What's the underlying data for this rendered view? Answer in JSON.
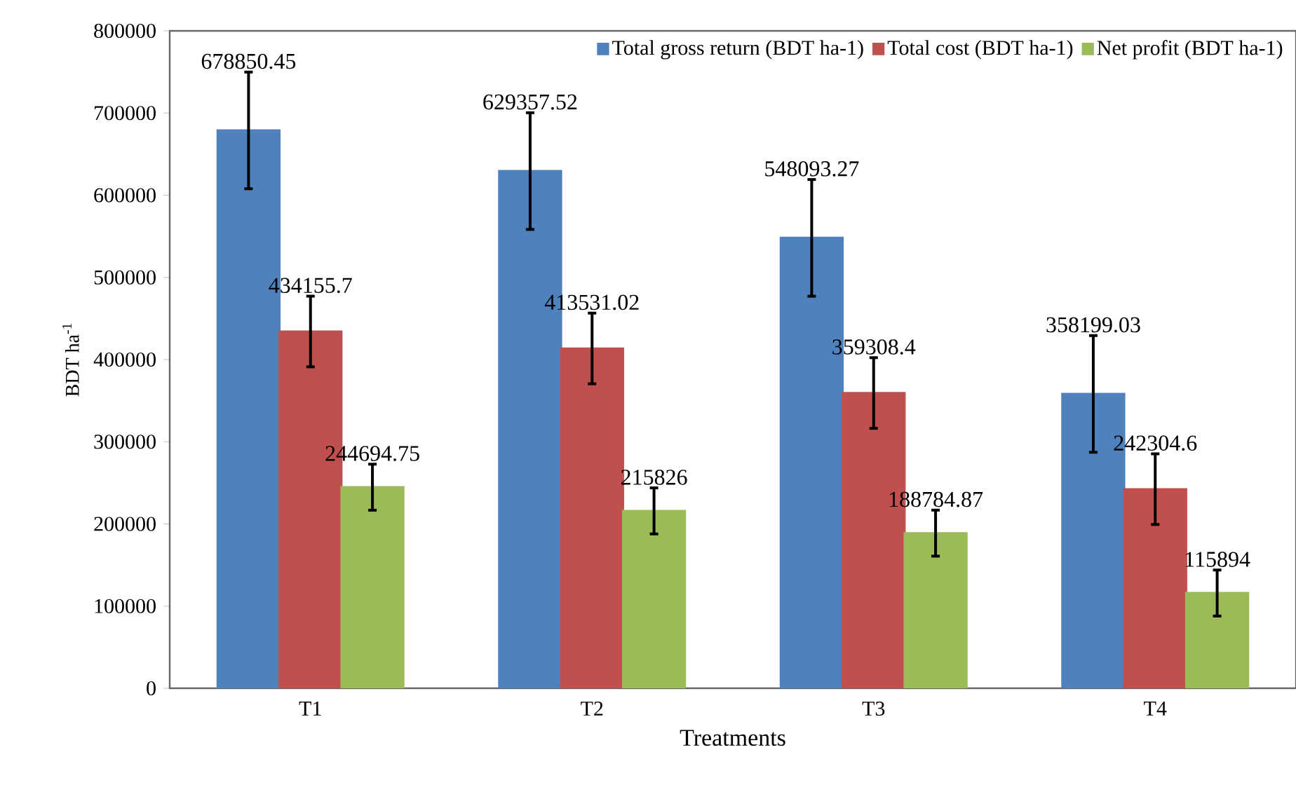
{
  "chart_data": {
    "type": "bar",
    "xlabel": "Treatments",
    "ylabel": "BDT ha$^{-1}$",
    "categories": [
      "T1",
      "T2",
      "T3",
      "T4"
    ],
    "series": [
      {
        "name": "Total gross return (BDT ha-1)",
        "color": "#4f81bd",
        "values": [
          678850.45,
          629357.52,
          548093.27,
          358199.03
        ],
        "errors": [
          71000,
          71000,
          71000,
          71000
        ],
        "value_labels": [
          "678850.45",
          "629357.52",
          "548093.27",
          "358199.03"
        ]
      },
      {
        "name": "Total cost (BDT ha-1)",
        "color": "#c0504d",
        "values": [
          434155.7,
          413531.02,
          359308.4,
          242304.6
        ],
        "errors": [
          43000,
          43000,
          43000,
          43000
        ],
        "value_labels": [
          "434155.7",
          "413531.02",
          "359308.4",
          "242304.6"
        ]
      },
      {
        "name": "Net profit (BDT ha-1)",
        "color": "#9bbb59",
        "values": [
          244694.75,
          215826,
          188784.87,
          115894
        ],
        "errors": [
          28000,
          28000,
          28000,
          28000
        ],
        "value_labels": [
          "244694.75",
          "215826",
          "188784.87",
          "115894"
        ]
      }
    ],
    "ylim": [
      0,
      800000
    ],
    "yticks": [
      0,
      100000,
      200000,
      300000,
      400000,
      500000,
      600000,
      700000,
      800000
    ],
    "legend": "top right",
    "grid": false
  }
}
